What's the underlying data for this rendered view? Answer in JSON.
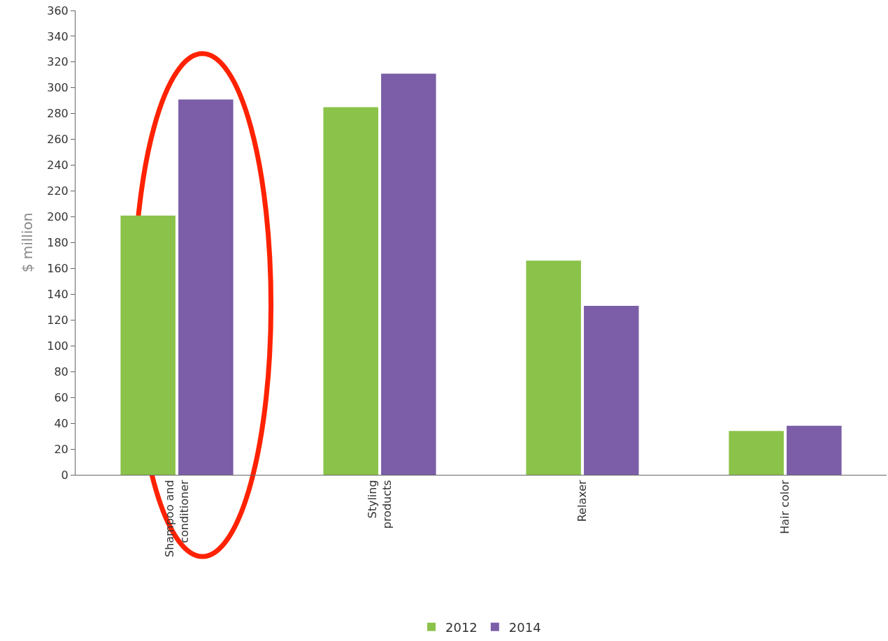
{
  "chart_data": {
    "type": "bar",
    "ylabel": "$ million",
    "categories": [
      "Shampoo and\nconditioner",
      "Styling\nproducts",
      "Relaxer",
      "Hair color"
    ],
    "series": [
      {
        "name": "2012",
        "color": "#8bc34a",
        "values": [
          201,
          285,
          166,
          34
        ]
      },
      {
        "name": "2014",
        "color": "#7b5ea7",
        "values": [
          291,
          311,
          131,
          38
        ]
      }
    ],
    "ylim": [
      0,
      360
    ],
    "yticks": [
      0,
      20,
      40,
      60,
      80,
      100,
      120,
      140,
      160,
      180,
      200,
      220,
      240,
      260,
      280,
      300,
      320,
      340,
      360
    ],
    "legend": "bottom"
  }
}
